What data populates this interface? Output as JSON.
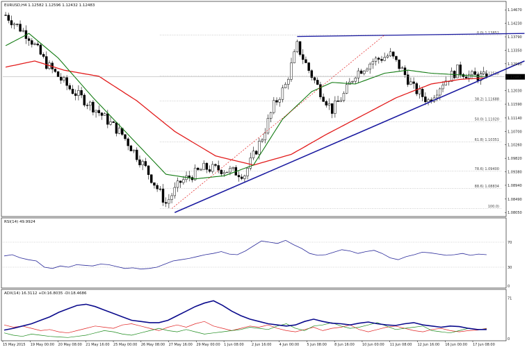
{
  "header": {
    "main": "EURUSD,H4  1.12582 1.12596 1.12432 1.12483",
    "rsi": "RSI(14) 49.9924",
    "adx": "ADX(14) 16.3112 +DI:16.8035 -DI:18.4686"
  },
  "current_price": "1.12483",
  "colors": {
    "bull_candle": "#ffffff",
    "bear_candle": "#000000",
    "ma_fast": "#117a11",
    "ma_slow": "#e21b1b",
    "trendline": "#1a1aa0",
    "rsi_line": "#2a2a9a",
    "adx_line": "#0a0a8c",
    "plus_di": "#1a8a1a",
    "minus_di": "#e02020",
    "fib_line": "#9a9a9a",
    "price_marker": "#000000"
  },
  "chart_data": [
    {
      "type": "candlestick",
      "panel": "price",
      "ylim": [
        1.0801,
        1.1472
      ],
      "y_ticks": [
        "1.14670",
        "1.14230",
        "1.13790",
        "1.13350",
        "1.12910",
        "1.12483",
        "1.12030",
        "1.11590",
        "1.11140",
        "1.10700",
        "1.10260",
        "1.09820",
        "1.09380",
        "1.08940",
        "1.08490",
        "1.08050"
      ],
      "y_tick_values": [
        1.1467,
        1.1423,
        1.1379,
        1.1335,
        1.1291,
        1.12483,
        1.1203,
        1.1159,
        1.1114,
        1.107,
        1.1026,
        1.0982,
        1.0938,
        1.0894,
        1.0849,
        1.0805
      ],
      "x_ticks": [
        "15 May 2015",
        "19 May 00:00",
        "20 May 08:00",
        "21 May 16:00",
        "25 May 00:00",
        "26 May 08:00",
        "27 May 16:00",
        "29 May 00:00",
        "1 Jun 08:00",
        "2 Jun 16:00",
        "4 Jun 00:00",
        "5 Jun 08:00",
        "8 Jun 16:00",
        "10 Jun 00:00",
        "11 Jun 08:00",
        "12 Jun 16:00",
        "16 Jun 00:00",
        "17 Jun 08:00"
      ],
      "fibonacci": [
        {
          "label": "0.0) 1.13851",
          "value": 1.13851
        },
        {
          "label": "23.6) 1.12518",
          "value": 1.12518
        },
        {
          "label": "38.2) 1.11688",
          "value": 1.11688
        },
        {
          "label": "50.0) 1.11020",
          "value": 1.1102
        },
        {
          "label": "61.8) 1.10351",
          "value": 1.10351
        },
        {
          "label": "78.6) 1.09400",
          "value": 1.094
        },
        {
          "label": "88.6) 1.08834",
          "value": 1.08834
        },
        {
          "label": "100.0)",
          "value": 1.0818
        }
      ],
      "key_points": [
        {
          "x": 0,
          "y": 1.145
        },
        {
          "x": 8,
          "y": 1.138
        },
        {
          "x": 14,
          "y": 1.129
        },
        {
          "x": 22,
          "y": 1.121
        },
        {
          "x": 30,
          "y": 1.115
        },
        {
          "x": 40,
          "y": 1.106
        },
        {
          "x": 48,
          "y": 1.095
        },
        {
          "x": 55,
          "y": 1.0835
        },
        {
          "x": 60,
          "y": 1.0905
        },
        {
          "x": 68,
          "y": 1.095
        },
        {
          "x": 75,
          "y": 1.0945
        },
        {
          "x": 82,
          "y": 1.093
        },
        {
          "x": 88,
          "y": 1.105
        },
        {
          "x": 92,
          "y": 1.1155
        },
        {
          "x": 96,
          "y": 1.122
        },
        {
          "x": 100,
          "y": 1.135
        },
        {
          "x": 104,
          "y": 1.127
        },
        {
          "x": 108,
          "y": 1.12
        },
        {
          "x": 112,
          "y": 1.114
        },
        {
          "x": 116,
          "y": 1.119
        },
        {
          "x": 120,
          "y": 1.126
        },
        {
          "x": 126,
          "y": 1.13
        },
        {
          "x": 132,
          "y": 1.132
        },
        {
          "x": 136,
          "y": 1.127
        },
        {
          "x": 140,
          "y": 1.121
        },
        {
          "x": 145,
          "y": 1.117
        },
        {
          "x": 150,
          "y": 1.123
        },
        {
          "x": 155,
          "y": 1.127
        },
        {
          "x": 160,
          "y": 1.125
        },
        {
          "x": 165,
          "y": 1.1248
        }
      ],
      "ma_fast_points": [
        {
          "x": 0,
          "y": 1.135
        },
        {
          "x": 8,
          "y": 1.139
        },
        {
          "x": 18,
          "y": 1.131
        },
        {
          "x": 30,
          "y": 1.118
        },
        {
          "x": 42,
          "y": 1.106
        },
        {
          "x": 55,
          "y": 1.093
        },
        {
          "x": 65,
          "y": 1.0915
        },
        {
          "x": 75,
          "y": 1.0925
        },
        {
          "x": 85,
          "y": 1.096
        },
        {
          "x": 95,
          "y": 1.111
        },
        {
          "x": 105,
          "y": 1.12
        },
        {
          "x": 112,
          "y": 1.123
        },
        {
          "x": 120,
          "y": 1.1225
        },
        {
          "x": 130,
          "y": 1.126
        },
        {
          "x": 138,
          "y": 1.127
        },
        {
          "x": 146,
          "y": 1.126
        },
        {
          "x": 155,
          "y": 1.1255
        },
        {
          "x": 165,
          "y": 1.1248
        }
      ],
      "ma_slow_points": [
        {
          "x": 0,
          "y": 1.128
        },
        {
          "x": 10,
          "y": 1.13
        },
        {
          "x": 20,
          "y": 1.127
        },
        {
          "x": 32,
          "y": 1.125
        },
        {
          "x": 45,
          "y": 1.117
        },
        {
          "x": 58,
          "y": 1.107
        },
        {
          "x": 72,
          "y": 1.099
        },
        {
          "x": 85,
          "y": 1.096
        },
        {
          "x": 98,
          "y": 1.0995
        },
        {
          "x": 110,
          "y": 1.106
        },
        {
          "x": 122,
          "y": 1.112
        },
        {
          "x": 134,
          "y": 1.118
        },
        {
          "x": 146,
          "y": 1.1225
        },
        {
          "x": 156,
          "y": 1.124
        },
        {
          "x": 165,
          "y": 1.1245
        }
      ],
      "trendline": {
        "x1": 58,
        "y1": 1.0805,
        "x2": 178,
        "y2": 1.13
      },
      "resistance_line": {
        "x1": 100,
        "y1": 1.138,
        "x2": 178,
        "y2": 1.139
      },
      "fib_diagonal": {
        "x1": 57,
        "y1": 1.0818,
        "x2": 130,
        "y2": 1.1385
      },
      "bars": 166
    },
    {
      "type": "line",
      "panel": "rsi",
      "ylim": [
        0,
        100
      ],
      "y_ticks": [
        "70",
        "30",
        "0"
      ],
      "y_tick_values": [
        70,
        30,
        0
      ],
      "series": [
        {
          "values": [
            48,
            50,
            45,
            42,
            40,
            30,
            28,
            32,
            30,
            34,
            33,
            32,
            35,
            34,
            31,
            28,
            29,
            27,
            28,
            30,
            35,
            40,
            42,
            44,
            47,
            50,
            52,
            55,
            51,
            50,
            56,
            64,
            72,
            70,
            68,
            73,
            66,
            60,
            52,
            49,
            50,
            54,
            58,
            56,
            52,
            55,
            57,
            52,
            45,
            42,
            47,
            50,
            54,
            53,
            51,
            49,
            50,
            52,
            49,
            51,
            50
          ]
        }
      ]
    },
    {
      "type": "line",
      "panel": "adx",
      "ylim": [
        0,
        75
      ],
      "y_ticks": [
        "71",
        "0"
      ],
      "y_tick_values": [
        71,
        0
      ],
      "series": [
        {
          "name": "ADX",
          "values": [
            15,
            18,
            22,
            26,
            32,
            38,
            46,
            52,
            58,
            60,
            56,
            50,
            44,
            38,
            32,
            30,
            28,
            28,
            32,
            40,
            48,
            56,
            62,
            66,
            58,
            48,
            40,
            34,
            30,
            26,
            24,
            22,
            24,
            30,
            34,
            30,
            27,
            26,
            24,
            27,
            29,
            26,
            24,
            23,
            26,
            28,
            24,
            22,
            20,
            22,
            21,
            18,
            16,
            16
          ]
        },
        {
          "name": "+DI",
          "values": [
            10,
            6,
            4,
            8,
            6,
            4,
            3,
            2,
            4,
            6,
            10,
            14,
            12,
            8,
            6,
            10,
            14,
            18,
            14,
            12,
            16,
            12,
            8,
            10,
            12,
            14,
            16,
            20,
            18,
            16,
            22,
            26,
            18,
            14,
            22,
            24,
            28,
            22,
            18,
            20,
            24,
            28,
            22,
            16,
            18,
            20,
            22,
            14,
            12,
            10,
            14,
            18,
            16,
            17
          ]
        },
        {
          "name": "-DI",
          "values": [
            24,
            20,
            22,
            18,
            14,
            16,
            12,
            10,
            14,
            18,
            22,
            20,
            18,
            24,
            26,
            22,
            18,
            14,
            20,
            24,
            20,
            26,
            30,
            22,
            18,
            14,
            18,
            22,
            20,
            24,
            18,
            14,
            12,
            16,
            20,
            14,
            18,
            20,
            24,
            16,
            12,
            16,
            20,
            22,
            18,
            14,
            12,
            16,
            18,
            14,
            12,
            14,
            15,
            18
          ]
        }
      ]
    }
  ]
}
